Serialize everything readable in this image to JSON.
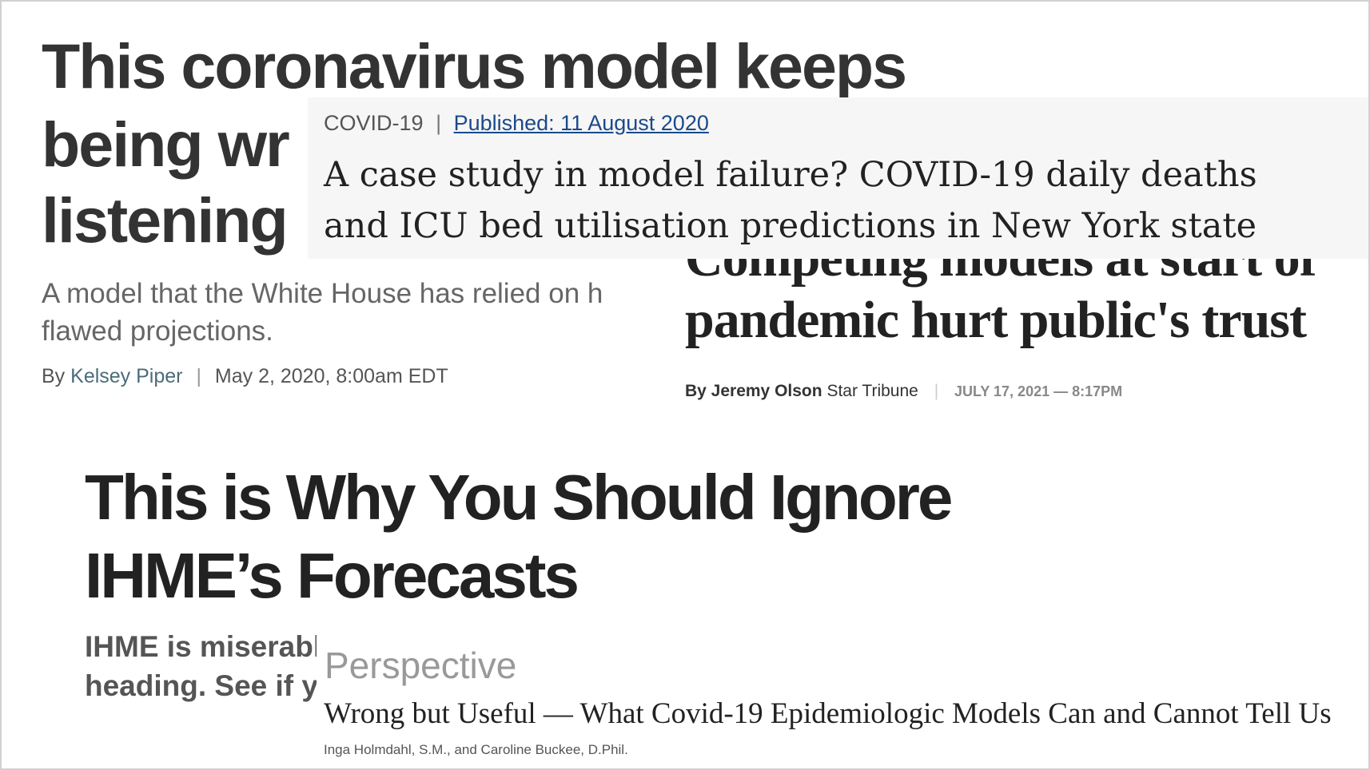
{
  "vox": {
    "headline": [
      "This coronavirus model keeps",
      "being wr",
      "listening"
    ],
    "subtitle": [
      "A model that the White House has relied on h",
      "flawed projections."
    ],
    "byline": {
      "by": "By",
      "author": "Kelsey Piper",
      "date": "May 2, 2020, 8:00am EDT"
    }
  },
  "star_tribune": {
    "headline": [
      "Competing models at start of",
      "pandemic hurt public's trust"
    ],
    "byline": {
      "author": "By Jeremy Olson",
      "outlet": "Star Tribune",
      "date": "JULY 17, 2021 — 8:17PM"
    }
  },
  "journal": {
    "tag": "COVID-19",
    "published": "Published: 11 August 2020",
    "title": [
      "A case study in model failure? COVID-19 daily deaths",
      "and ICU bed utilisation predictions in New York state"
    ]
  },
  "medium": {
    "headline": [
      "This is Why You Should Ignore",
      "IHME’s Forecasts"
    ],
    "subtitle": [
      "IHME is miserabl",
      "heading. See if yo"
    ]
  },
  "nejm": {
    "section": "Perspective",
    "title": "Wrong but Useful — What Covid-19 Epidemiologic Models Can and Cannot Tell Us",
    "authors": "Inga Holmdahl, S.M., and Caroline Buckee, D.Phil."
  }
}
